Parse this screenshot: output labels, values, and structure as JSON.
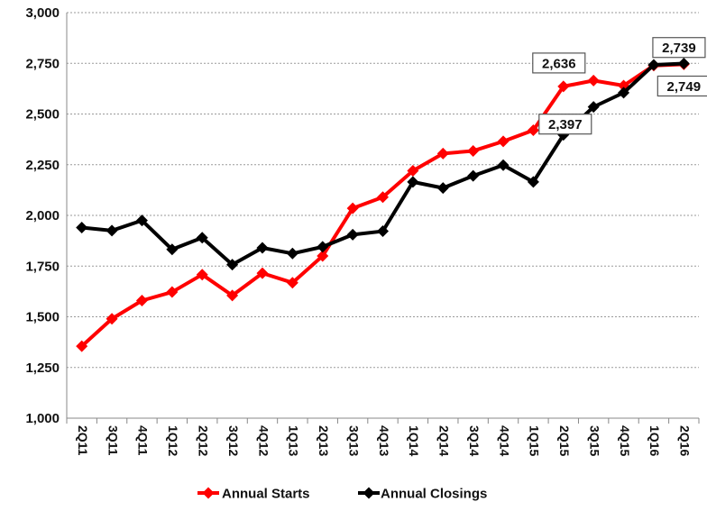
{
  "chart_data": {
    "type": "line",
    "categories": [
      "2Q11",
      "3Q11",
      "4Q11",
      "1Q12",
      "2Q12",
      "3Q12",
      "4Q12",
      "1Q13",
      "2Q13",
      "3Q13",
      "4Q13",
      "1Q14",
      "2Q14",
      "3Q14",
      "4Q14",
      "1Q15",
      "2Q15",
      "3Q15",
      "4Q15",
      "1Q16",
      "2Q16"
    ],
    "series": [
      {
        "name": "Annual Starts",
        "color": "#ff0000",
        "values": [
          1355,
          1490,
          1580,
          1622,
          1708,
          1605,
          1715,
          1668,
          1800,
          2035,
          2090,
          2220,
          2305,
          2318,
          2365,
          2420,
          2636,
          2665,
          2640,
          2739,
          2745
        ]
      },
      {
        "name": "Annual Closings",
        "color": "#000000",
        "values": [
          1940,
          1925,
          1975,
          1832,
          1890,
          1757,
          1840,
          1812,
          1845,
          1905,
          1922,
          2165,
          2135,
          2195,
          2248,
          2165,
          2397,
          2535,
          2605,
          2742,
          2749
        ]
      }
    ],
    "ylim": [
      1000,
      3000
    ],
    "yticks": [
      "1,000",
      "1,250",
      "1,500",
      "1,750",
      "2,000",
      "2,250",
      "2,500",
      "2,750",
      "3,000"
    ],
    "grid": true,
    "legend": "bottom-center",
    "annotations": [
      "2,636",
      "2,397",
      "2,739",
      "2,749"
    ]
  }
}
